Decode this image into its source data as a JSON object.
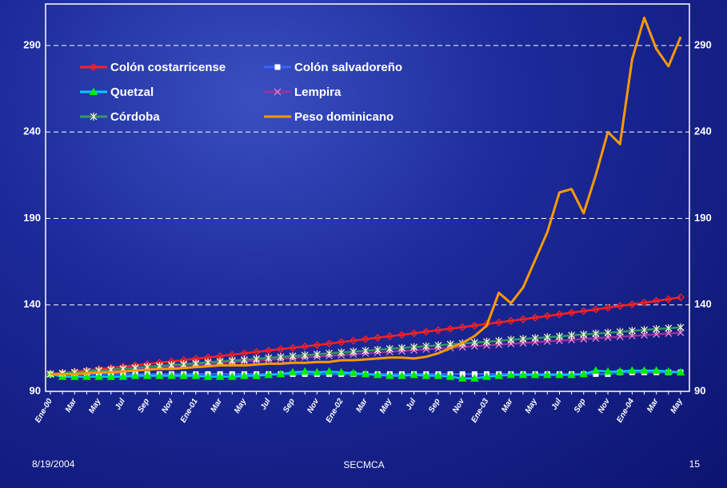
{
  "chart_data": {
    "type": "line",
    "categories": [
      "Ene-00",
      null,
      "Mar",
      null,
      "May",
      null,
      "Jul",
      null,
      "Sep",
      null,
      "Nov",
      null,
      "Ene-01",
      null,
      "Mar",
      null,
      "May",
      null,
      "Jul",
      null,
      "Sep",
      null,
      "Nov",
      null,
      "Ene-02",
      null,
      "Mar",
      null,
      "May",
      null,
      "Jul",
      null,
      "Sep",
      null,
      "Nov",
      null,
      "Ene-03",
      null,
      "Mar",
      null,
      "May",
      null,
      "Jul",
      null,
      "Sep",
      null,
      "Nov",
      null,
      "Ene-04",
      null,
      "Mar",
      null,
      "May"
    ],
    "series": [
      {
        "name": "Colón costarricense",
        "color": "#ff2020",
        "marker": "diamond",
        "marker_color": "#ff2020",
        "values": [
          100,
          100.7,
          101.4,
          102.1,
          102.9,
          103.6,
          104.3,
          105.1,
          105.8,
          106.6,
          107.3,
          108.1,
          108.9,
          109.6,
          110.4,
          111.2,
          112,
          112.8,
          113.6,
          114.4,
          115.2,
          116,
          116.8,
          117.6,
          118.5,
          119.3,
          120.2,
          121,
          121.9,
          122.7,
          123.6,
          124.5,
          125.4,
          126.2,
          127.1,
          128,
          129,
          129.9,
          130.8,
          131.7,
          132.6,
          133.6,
          134.5,
          135.5,
          136.4,
          137.4,
          138.4,
          139.4,
          140.3,
          141.3,
          142.3,
          143.3,
          144.4
        ]
      },
      {
        "name": "Colón salvadoreño",
        "color": "#3366ff",
        "marker": "square",
        "marker_color": "#ffffff",
        "values": [
          100,
          100,
          100,
          100,
          100,
          100,
          100,
          100,
          100,
          100,
          100,
          100,
          100,
          100,
          100,
          100,
          100,
          100,
          100,
          100,
          100,
          100,
          100,
          100,
          100,
          100,
          100,
          100,
          100,
          100,
          100,
          100,
          100,
          100,
          100,
          100,
          100,
          100,
          100,
          100,
          100,
          100,
          100,
          100,
          100,
          100,
          100,
          101,
          101,
          101,
          101,
          101,
          101
        ]
      },
      {
        "name": "Quetzal",
        "color": "#00ccff",
        "marker": "triangle",
        "marker_color": "#00ee00",
        "values": [
          100,
          98.5,
          98.5,
          98.5,
          98.5,
          98.5,
          98.5,
          99,
          99,
          99,
          99,
          99,
          99,
          98.5,
          98.5,
          98.5,
          99,
          99,
          99.5,
          100,
          101,
          101.5,
          101,
          101.5,
          101,
          100.5,
          100,
          99.5,
          99,
          99,
          99.5,
          99,
          99,
          98.5,
          97.5,
          97.5,
          98.5,
          99,
          99.5,
          99.5,
          99.5,
          99.5,
          99.5,
          99.5,
          100,
          102,
          101.5,
          101.5,
          102,
          102,
          102,
          101.5,
          101
        ]
      },
      {
        "name": "Lempira",
        "color": "#993399",
        "marker": "x",
        "marker_color": "#ff88dd",
        "values": [
          100,
          100.5,
          100.9,
          101.4,
          101.8,
          102.3,
          102.8,
          103.2,
          103.7,
          104.1,
          104.6,
          105.1,
          105.5,
          106,
          106.4,
          106.9,
          107.4,
          107.8,
          108.3,
          108.7,
          109.2,
          109.7,
          110.1,
          110.6,
          111,
          111.5,
          112,
          112.4,
          112.9,
          113.3,
          113.8,
          114.3,
          114.7,
          115.2,
          115.6,
          116.1,
          116.6,
          117,
          117.5,
          117.9,
          118.4,
          118.9,
          119.3,
          119.8,
          120.2,
          120.7,
          121.2,
          121.6,
          122.1,
          122.5,
          123,
          123.5,
          123.9
        ]
      },
      {
        "name": "Córdoba",
        "color": "#339966",
        "marker": "star",
        "marker_color": "#ffffcc",
        "values": [
          100,
          100.5,
          101,
          101.6,
          102.1,
          102.6,
          103.1,
          103.6,
          104.2,
          104.7,
          105.2,
          105.7,
          106.2,
          106.8,
          107.3,
          107.8,
          108.3,
          108.8,
          109.4,
          109.9,
          110.4,
          110.9,
          111.4,
          112,
          112.5,
          113,
          113.5,
          114,
          114.6,
          115.1,
          115.6,
          116.1,
          116.6,
          117.2,
          117.7,
          118.2,
          118.7,
          119.2,
          119.8,
          120.3,
          120.8,
          121.3,
          121.8,
          122.4,
          122.9,
          123.4,
          123.9,
          124.4,
          125,
          125.5,
          126,
          126.5,
          127
        ]
      },
      {
        "name": "Peso dominicano",
        "color": "#ff9900",
        "marker": "none",
        "marker_color": "#ff9900",
        "values": [
          100,
          100,
          100,
          100.5,
          101,
          101,
          101.5,
          102,
          102.5,
          103,
          103,
          103.5,
          104,
          104.5,
          105,
          105,
          105,
          105.5,
          106,
          106,
          106.5,
          106.5,
          107,
          107,
          108,
          108,
          108.5,
          109,
          109.5,
          109.5,
          109,
          110,
          112,
          115,
          118,
          122,
          128,
          147,
          141,
          150,
          166,
          182,
          205,
          207,
          193,
          215,
          240,
          233,
          282,
          306,
          288,
          278,
          295
        ]
      }
    ],
    "ylim": [
      90,
      314
    ],
    "yticks": [
      90,
      140,
      190,
      240,
      290
    ],
    "grid": true,
    "legend": "upper-left"
  },
  "footer": {
    "date": "8/19/2004",
    "center": "SECMCA",
    "page": "15"
  }
}
